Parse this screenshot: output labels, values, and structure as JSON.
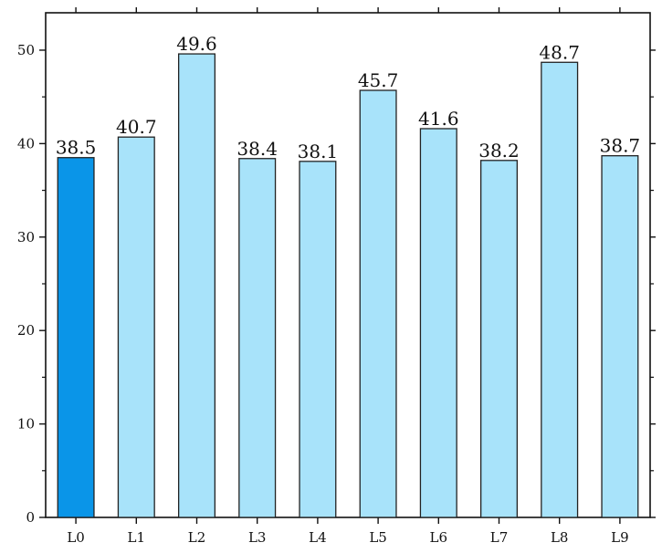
{
  "chart_data": {
    "type": "bar",
    "categories": [
      "L0",
      "L1",
      "L2",
      "L3",
      "L4",
      "L5",
      "L6",
      "L7",
      "L8",
      "L9"
    ],
    "values": [
      38.5,
      40.7,
      49.6,
      38.4,
      38.1,
      45.7,
      41.6,
      38.2,
      48.7,
      38.7
    ],
    "data_labels": [
      "38.5",
      "40.7",
      "49.6",
      "38.4",
      "38.1",
      "45.7",
      "41.6",
      "38.2",
      "48.7",
      "38.7"
    ],
    "ylim": [
      0,
      54
    ],
    "y_ticks": [
      0,
      10,
      20,
      30,
      40,
      50
    ],
    "y_tick_labels": [
      "0",
      "10",
      "20",
      "30",
      "40",
      "50"
    ],
    "title": "",
    "xlabel": "",
    "ylabel": "",
    "grid": false,
    "legend": "none",
    "colors": {
      "highlight_bar": "#0a95e8",
      "bar": "#a8e3fa",
      "bar_outline": "#222222",
      "axis": "#111111"
    },
    "highlight_index": 0
  }
}
